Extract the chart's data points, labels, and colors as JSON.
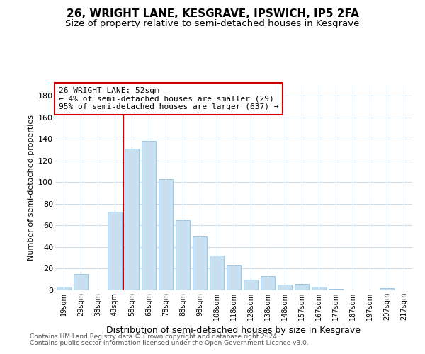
{
  "title": "26, WRIGHT LANE, KESGRAVE, IPSWICH, IP5 2FA",
  "subtitle": "Size of property relative to semi-detached houses in Kesgrave",
  "xlabel": "Distribution of semi-detached houses by size in Kesgrave",
  "ylabel": "Number of semi-detached properties",
  "categories": [
    "19sqm",
    "29sqm",
    "38sqm",
    "48sqm",
    "58sqm",
    "68sqm",
    "78sqm",
    "88sqm",
    "98sqm",
    "108sqm",
    "118sqm",
    "128sqm",
    "138sqm",
    "148sqm",
    "157sqm",
    "167sqm",
    "177sqm",
    "187sqm",
    "197sqm",
    "207sqm",
    "217sqm"
  ],
  "values": [
    3,
    15,
    0,
    73,
    131,
    138,
    103,
    65,
    50,
    32,
    23,
    10,
    13,
    5,
    6,
    3,
    1,
    0,
    0,
    2,
    0
  ],
  "bar_color": "#c8dff0",
  "bar_edgecolor": "#a0c4e0",
  "annotation_title": "26 WRIGHT LANE: 52sqm",
  "annotation_line1": "← 4% of semi-detached houses are smaller (29)",
  "annotation_line2": "95% of semi-detached houses are larger (637) →",
  "annotation_box_color": "#cc0000",
  "vline_color": "#cc0000",
  "vline_x_index": 3.5,
  "ylim": [
    0,
    190
  ],
  "yticks": [
    0,
    20,
    40,
    60,
    80,
    100,
    120,
    140,
    160,
    180
  ],
  "footer1": "Contains HM Land Registry data © Crown copyright and database right 2024.",
  "footer2": "Contains public sector information licensed under the Open Government Licence v3.0.",
  "bg_color": "#ffffff",
  "grid_color": "#d0dce8",
  "title_fontsize": 11,
  "subtitle_fontsize": 9.5
}
